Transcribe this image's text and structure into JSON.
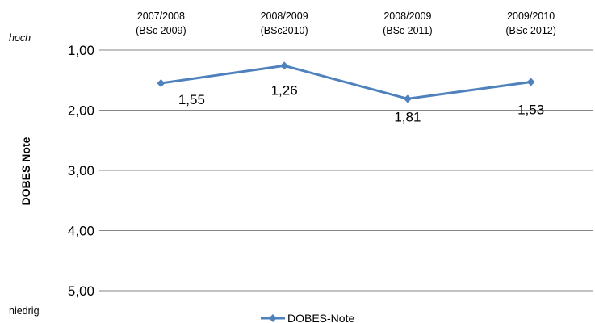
{
  "chart_data": {
    "type": "line",
    "categories": [
      [
        "2007/2008",
        "(BSc 2009)"
      ],
      [
        "2008/2009",
        "(BSc2010)"
      ],
      [
        "2008/2009",
        "(BSc 2011)"
      ],
      [
        "2009/2010",
        "(BSc 2012)"
      ]
    ],
    "series": [
      {
        "name": "DOBES-Note",
        "values": [
          1.55,
          1.26,
          1.81,
          1.53
        ],
        "labels": [
          "1,55",
          "1,26",
          "1,81",
          "1,53"
        ],
        "color": "#4f81bd",
        "marker": "diamond"
      }
    ],
    "ylabel": "DOBES Note",
    "ylim": [
      1,
      5
    ],
    "y_reversed": true,
    "y_ticks": [
      1,
      2,
      3,
      4,
      5
    ],
    "y_tick_labels": [
      "1,00",
      "2,00",
      "3,00",
      "4,00",
      "5,00"
    ],
    "y_top_note": "hoch",
    "y_bottom_note": "niedrig",
    "x_axis_position": "top",
    "grid": true,
    "grid_color": "#868686",
    "legend": "bottom-center"
  }
}
